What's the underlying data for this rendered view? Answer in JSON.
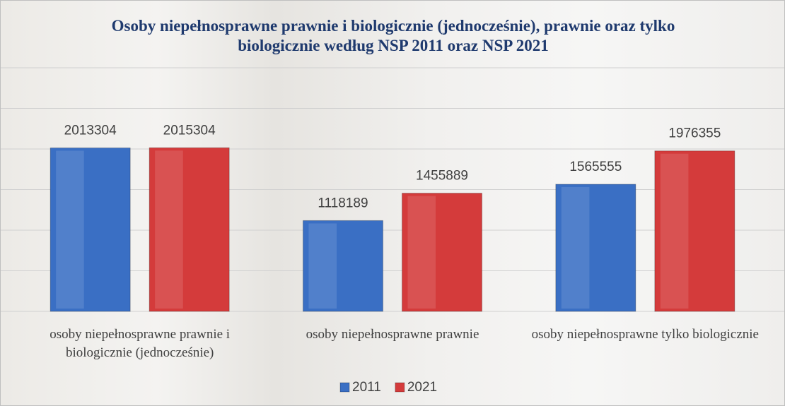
{
  "chart_data": {
    "type": "bar",
    "title": "Osoby niepełnosprawne prawnie i biologicznie (jednocześnie), prawnie oraz tylko biologicznie według  NSP 2011 oraz NSP 2021",
    "categories": [
      "osoby niepełnosprawne prawnie i biologicznie (jednocześnie)",
      "osoby niepełnosprawne prawnie",
      "osoby niepełnosprawne tylko biologicznie"
    ],
    "series": [
      {
        "name": "2011",
        "color": "#3a6fc4",
        "values": [
          2013304,
          1118189,
          1565555
        ]
      },
      {
        "name": "2021",
        "color": "#d43b3b",
        "values": [
          2015304,
          1455889,
          1976355
        ]
      }
    ],
    "ylim": [
      0,
      3000000
    ],
    "yticks": [
      0,
      500000,
      1000000,
      1500000,
      2000000,
      2500000,
      3000000
    ],
    "grid": true,
    "legend": "bottom"
  }
}
